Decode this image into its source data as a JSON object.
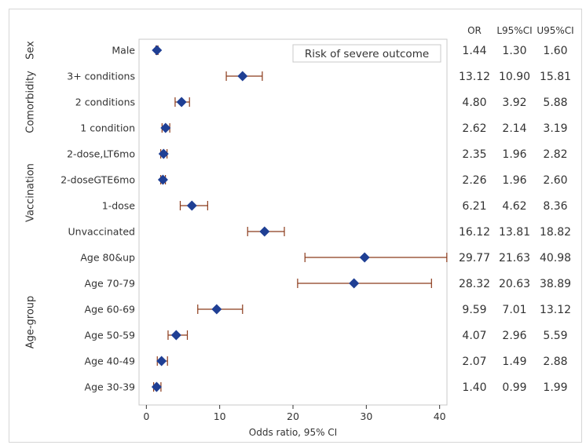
{
  "chart_data": {
    "type": "forest",
    "title": "Risk of severe outcome",
    "xlabel": "Odds ratio, 95% CI",
    "xlim": [
      -1,
      41
    ],
    "xticks": [
      0,
      10,
      20,
      30,
      40
    ],
    "column_headers": [
      "OR",
      "L95%CI",
      "U95%CI"
    ],
    "groups": [
      {
        "name": "Sex",
        "rows": [
          "Male"
        ]
      },
      {
        "name": "Comorbidity",
        "rows": [
          "3+ conditions",
          "2 conditions",
          "1 condition"
        ]
      },
      {
        "name": "Vaccination",
        "rows": [
          "2-dose,LT6mo",
          "2-doseGTE6mo",
          "1-dose",
          "Unvaccinated"
        ]
      },
      {
        "name": "Age-group",
        "rows": [
          "Age 80&up",
          "Age 70-79",
          "Age 60-69",
          "Age 50-59",
          "Age 40-49",
          "Age 30-39"
        ]
      }
    ],
    "rows": [
      {
        "label": "Male",
        "or": 1.44,
        "lcl": 1.3,
        "ucl": 1.6,
        "or_text": "1.44",
        "lcl_text": "1.30",
        "ucl_text": "1.60"
      },
      {
        "label": "3+ conditions",
        "or": 13.12,
        "lcl": 10.9,
        "ucl": 15.81,
        "or_text": "13.12",
        "lcl_text": "10.90",
        "ucl_text": "15.81"
      },
      {
        "label": "2 conditions",
        "or": 4.8,
        "lcl": 3.92,
        "ucl": 5.88,
        "or_text": "4.80",
        "lcl_text": "3.92",
        "ucl_text": "5.88"
      },
      {
        "label": "1 condition",
        "or": 2.62,
        "lcl": 2.14,
        "ucl": 3.19,
        "or_text": "2.62",
        "lcl_text": "2.14",
        "ucl_text": "3.19"
      },
      {
        "label": "2-dose,LT6mo",
        "or": 2.35,
        "lcl": 1.96,
        "ucl": 2.82,
        "or_text": "2.35",
        "lcl_text": "1.96",
        "ucl_text": "2.82"
      },
      {
        "label": "2-doseGTE6mo",
        "or": 2.26,
        "lcl": 1.96,
        "ucl": 2.6,
        "or_text": "2.26",
        "lcl_text": "1.96",
        "ucl_text": "2.60"
      },
      {
        "label": "1-dose",
        "or": 6.21,
        "lcl": 4.62,
        "ucl": 8.36,
        "or_text": "6.21",
        "lcl_text": "4.62",
        "ucl_text": "8.36"
      },
      {
        "label": "Unvaccinated",
        "or": 16.12,
        "lcl": 13.81,
        "ucl": 18.82,
        "or_text": "16.12",
        "lcl_text": "13.81",
        "ucl_text": "18.82"
      },
      {
        "label": "Age 80&up",
        "or": 29.77,
        "lcl": 21.63,
        "ucl": 40.98,
        "or_text": "29.77",
        "lcl_text": "21.63",
        "ucl_text": "40.98"
      },
      {
        "label": "Age 70-79",
        "or": 28.32,
        "lcl": 20.63,
        "ucl": 38.89,
        "or_text": "28.32",
        "lcl_text": "20.63",
        "ucl_text": "38.89"
      },
      {
        "label": "Age 60-69",
        "or": 9.59,
        "lcl": 7.01,
        "ucl": 13.12,
        "or_text": "9.59",
        "lcl_text": "7.01",
        "ucl_text": "13.12"
      },
      {
        "label": "Age 50-59",
        "or": 4.07,
        "lcl": 2.96,
        "ucl": 5.59,
        "or_text": "4.07",
        "lcl_text": "2.96",
        "ucl_text": "5.59"
      },
      {
        "label": "Age 40-49",
        "or": 2.07,
        "lcl": 1.49,
        "ucl": 2.88,
        "or_text": "2.07",
        "lcl_text": "1.49",
        "ucl_text": "2.88"
      },
      {
        "label": "Age 30-39",
        "or": 1.4,
        "lcl": 0.99,
        "ucl": 1.99,
        "or_text": "1.40",
        "lcl_text": "0.99",
        "ucl_text": "1.99"
      }
    ],
    "colors": {
      "marker": "#1f3f94",
      "ci": "#8b3a1a",
      "axis": "#333333",
      "border": "#c8c8c8"
    },
    "legend_position": "top-right"
  }
}
